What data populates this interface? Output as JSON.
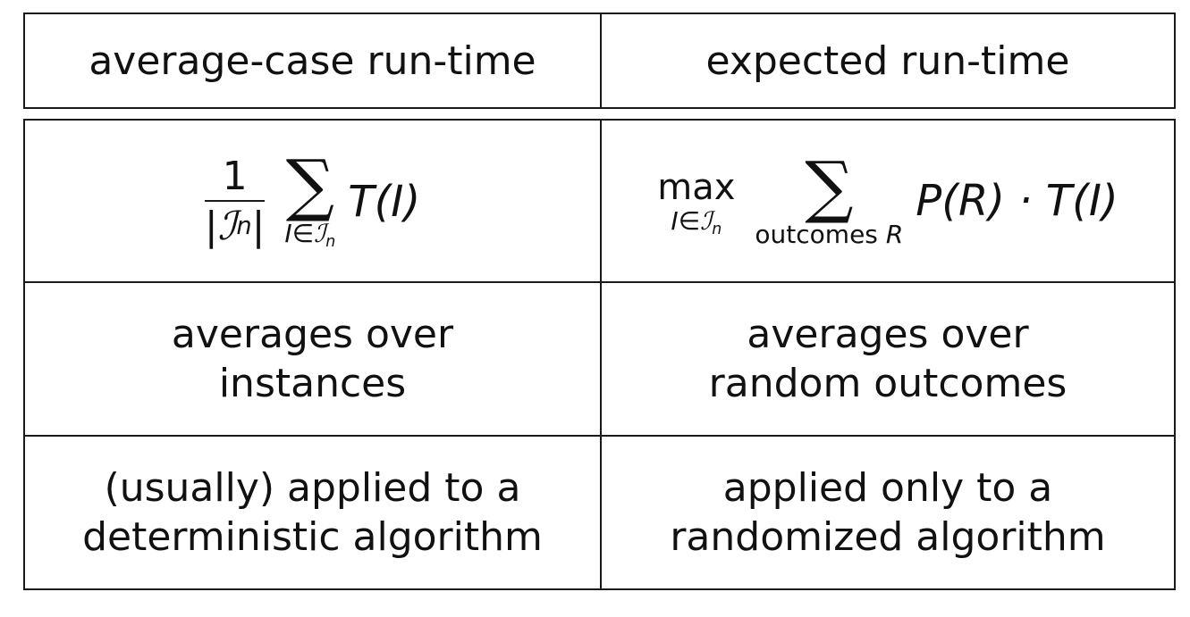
{
  "header": {
    "left": "average-case run-time",
    "right": "expected run-time"
  },
  "formulas": {
    "left": {
      "numerator": "1",
      "denominator_set": "ℐ",
      "denominator_sub": "n",
      "sum_symbol": "∑",
      "sum_sub_var": "I",
      "sum_sub_rel": "∈",
      "sum_sub_set": "ℐ",
      "sum_sub_n": "n",
      "term": "T(I)"
    },
    "right": {
      "max_op": "max",
      "max_sub_var": "I",
      "max_sub_rel": "∈",
      "max_sub_set": "ℐ",
      "max_sub_n": "n",
      "sum_symbol": "∑",
      "sum_sub_text": "outcomes",
      "sum_sub_var": "R",
      "term": "P(R) · T(I)"
    }
  },
  "rows": [
    {
      "left": [
        "averages over",
        "instances"
      ],
      "right": [
        "averages over",
        "random outcomes"
      ]
    },
    {
      "left": [
        "(usually) applied to a",
        "deterministic algorithm"
      ],
      "right": [
        "applied only to a",
        "randomized algorithm"
      ]
    }
  ]
}
